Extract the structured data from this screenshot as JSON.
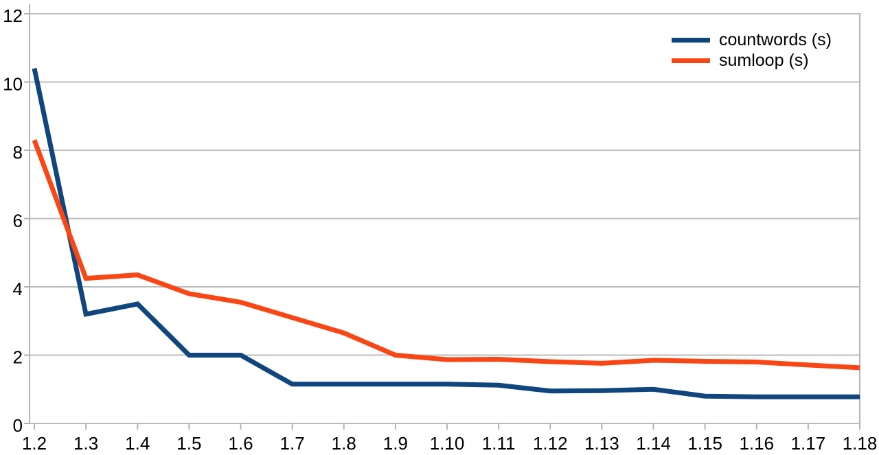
{
  "chart_data": {
    "type": "line",
    "title": "",
    "xlabel": "",
    "ylabel": "",
    "categories": [
      "1.2",
      "1.3",
      "1.4",
      "1.5",
      "1.6",
      "1.7",
      "1.8",
      "1.9",
      "1.10",
      "1.11",
      "1.12",
      "1.13",
      "1.14",
      "1.15",
      "1.16",
      "1.17",
      "1.18"
    ],
    "series": [
      {
        "name": "countwords (s)",
        "color": "#10467e",
        "values": [
          10.4,
          3.2,
          3.5,
          2.0,
          2.0,
          1.15,
          1.15,
          1.15,
          1.15,
          1.12,
          0.95,
          0.96,
          1.0,
          0.8,
          0.78,
          0.78,
          0.78
        ]
      },
      {
        "name": "sumloop (s)",
        "color": "#fa4614",
        "values": [
          8.3,
          4.25,
          4.35,
          3.8,
          3.55,
          3.1,
          2.65,
          2.0,
          1.87,
          1.88,
          1.81,
          1.76,
          1.85,
          1.82,
          1.8,
          1.71,
          1.63
        ]
      }
    ],
    "ylim": [
      0,
      12
    ],
    "yticks": [
      0,
      2,
      4,
      6,
      8,
      10,
      12
    ],
    "grid": true,
    "legend_position": "top-right",
    "colors": {
      "grid": "#bcbcbc",
      "axis": "#b3b3b3",
      "text": "#000000",
      "background": "#ffffff"
    }
  }
}
